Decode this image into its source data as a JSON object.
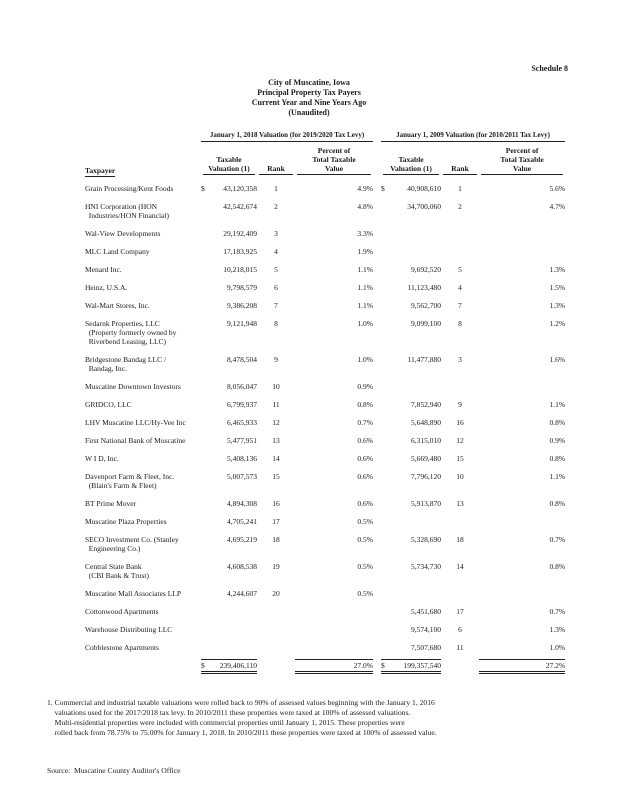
{
  "page": {
    "schedule_label": "Schedule 8",
    "title": "City of Muscatine, Iowa\nPrincipal Property Tax Payers\nCurrent Year and Nine Years Ago\n(Unaudited)"
  },
  "table": {
    "group_headers": [
      "January 1, 2018 Valuation (for 2019/2020 Tax Levy)",
      "January 1, 2009 Valuation (for 2010/2011 Tax Levy)"
    ],
    "columns": {
      "taxpayer": "Taxpayer",
      "taxable_valuation": "Taxable\nValuation (1)",
      "rank": "Rank",
      "percent": "Percent of\nTotal Taxable\nValue"
    },
    "rows": [
      {
        "name": "Grain Processing/Kent Foods",
        "d1": "$",
        "v1": "43,120,358",
        "r1": "1",
        "p1": "4.9%",
        "d2": "$",
        "v2": "40,908,610",
        "r2": "1",
        "p2": "5.6%"
      },
      {
        "name": "HNI Corporation (HON\n  Industries/HON Financial)",
        "d1": "",
        "v1": "42,542,674",
        "r1": "2",
        "p1": "4.8%",
        "d2": "",
        "v2": "34,700,060",
        "r2": "2",
        "p2": "4.7%"
      },
      {
        "name": "Wal-View Developments",
        "d1": "",
        "v1": "29,192,409",
        "r1": "3",
        "p1": "3.3%",
        "d2": "",
        "v2": "",
        "r2": "",
        "p2": ""
      },
      {
        "name": "MLC Land Company",
        "d1": "",
        "v1": "17,183,925",
        "r1": "4",
        "p1": "1.9%",
        "d2": "",
        "v2": "",
        "r2": "",
        "p2": ""
      },
      {
        "name": "Menard Inc.",
        "d1": "",
        "v1": "10,218,015",
        "r1": "5",
        "p1": "1.1%",
        "d2": "",
        "v2": "9,692,520",
        "r2": "5",
        "p2": "1.3%"
      },
      {
        "name": "Heinz, U.S.A.",
        "d1": "",
        "v1": "9,798,579",
        "r1": "6",
        "p1": "1.1%",
        "d2": "",
        "v2": "11,123,480",
        "r2": "4",
        "p2": "1.5%"
      },
      {
        "name": "Wal-Mart Stores, Inc.",
        "d1": "",
        "v1": "9,386,208",
        "r1": "7",
        "p1": "1.1%",
        "d2": "",
        "v2": "9,562,700",
        "r2": "7",
        "p2": "1.3%"
      },
      {
        "name": "Sedarnk Properties, LLC\n  (Property formerly owned by\n  Riverbend Leasing, LLC)",
        "d1": "",
        "v1": "9,121,948",
        "r1": "8",
        "p1": "1.0%",
        "d2": "",
        "v2": "9,099,100",
        "r2": "8",
        "p2": "1.2%"
      },
      {
        "name": "Bridgestone Bandag LLC /\n  Bandag, Inc.",
        "d1": "",
        "v1": "8,478,504",
        "r1": "9",
        "p1": "1.0%",
        "d2": "",
        "v2": "11,477,880",
        "r2": "3",
        "p2": "1.6%"
      },
      {
        "name": "Muscatine Downtown Investors",
        "d1": "",
        "v1": "8,056,047",
        "r1": "10",
        "p1": "0.9%",
        "d2": "",
        "v2": "",
        "r2": "",
        "p2": ""
      },
      {
        "name": "GRIDCO, LLC",
        "d1": "",
        "v1": "6,799,937",
        "r1": "11",
        "p1": "0.8%",
        "d2": "",
        "v2": "7,852,940",
        "r2": "9",
        "p2": "1.1%"
      },
      {
        "name": "LHV Muscatine LLC/Hy-Vee Inc",
        "d1": "",
        "v1": "6,465,933",
        "r1": "12",
        "p1": "0.7%",
        "d2": "",
        "v2": "5,648,890",
        "r2": "16",
        "p2": "0.8%"
      },
      {
        "name": "First National Bank of Muscatine",
        "d1": "",
        "v1": "5,477,951",
        "r1": "13",
        "p1": "0.6%",
        "d2": "",
        "v2": "6,315,010",
        "r2": "12",
        "p2": "0.9%"
      },
      {
        "name": "W I D, Inc.",
        "d1": "",
        "v1": "5,408,136",
        "r1": "14",
        "p1": "0.6%",
        "d2": "",
        "v2": "5,669,480",
        "r2": "15",
        "p2": "0.8%"
      },
      {
        "name": "Davenport Farm & Fleet, Inc.\n  (Blain's Farm & Fleet)",
        "d1": "",
        "v1": "5,007,573",
        "r1": "15",
        "p1": "0.6%",
        "d2": "",
        "v2": "7,796,120",
        "r2": "10",
        "p2": "1.1%"
      },
      {
        "name": "BT Prime Mover",
        "d1": "",
        "v1": "4,894,308",
        "r1": "16",
        "p1": "0.6%",
        "d2": "",
        "v2": "5,913,870",
        "r2": "13",
        "p2": "0.8%"
      },
      {
        "name": "Muscatine Plaza Properties",
        "d1": "",
        "v1": "4,705,241",
        "r1": "17",
        "p1": "0.5%",
        "d2": "",
        "v2": "",
        "r2": "",
        "p2": ""
      },
      {
        "name": "SECO Investment Co. (Stanley\n  Engineering Co.)",
        "d1": "",
        "v1": "4,695,219",
        "r1": "18",
        "p1": "0.5%",
        "d2": "",
        "v2": "5,328,690",
        "r2": "18",
        "p2": "0.7%"
      },
      {
        "name": "Central State Bank\n  (CBI Bank & Trust)",
        "d1": "",
        "v1": "4,608,538",
        "r1": "19",
        "p1": "0.5%",
        "d2": "",
        "v2": "5,734,730",
        "r2": "14",
        "p2": "0.8%"
      },
      {
        "name": "Muscatine Mall Associates LLP",
        "d1": "",
        "v1": "4,244,607",
        "r1": "20",
        "p1": "0.5%",
        "d2": "",
        "v2": "",
        "r2": "",
        "p2": ""
      },
      {
        "name": "Cottonwood Apartments",
        "d1": "",
        "v1": "",
        "r1": "",
        "p1": "",
        "d2": "",
        "v2": "5,451,680",
        "r2": "17",
        "p2": "0.7%"
      },
      {
        "name": "Warehouse Distributing LLC",
        "d1": "",
        "v1": "",
        "r1": "",
        "p1": "",
        "d2": "",
        "v2": "9,574,100",
        "r2": "6",
        "p2": "1.3%"
      },
      {
        "name": "Cobblestone Apartments",
        "d1": "",
        "v1": "",
        "r1": "",
        "p1": "",
        "d2": "",
        "v2": "7,507,680",
        "r2": "11",
        "p2": "1.0%"
      }
    ],
    "total": {
      "d1": "$",
      "v1": "239,406,110",
      "p1": "27.0%",
      "d2": "$",
      "v2": "199,357,540",
      "p2": "27.2%"
    }
  },
  "footnote": "1. Commercial and industrial taxable valuations were rolled back to 90% of assessed values beginning with the January 1, 2016\n    valuations used for the 2017/2018 tax levy. In 2010/2011 these properties were taxed at 100% of assessed valuations.\n    Multi-residential properties were included with commercial properties until January 1, 2015. These properties were\n    rolled back from 78.75% to 75.00% for January 1, 2018. In 2010/2011 these properties were taxed at 100% of assessed value.",
  "source": "Source:  Muscatine County Auditor's Office"
}
